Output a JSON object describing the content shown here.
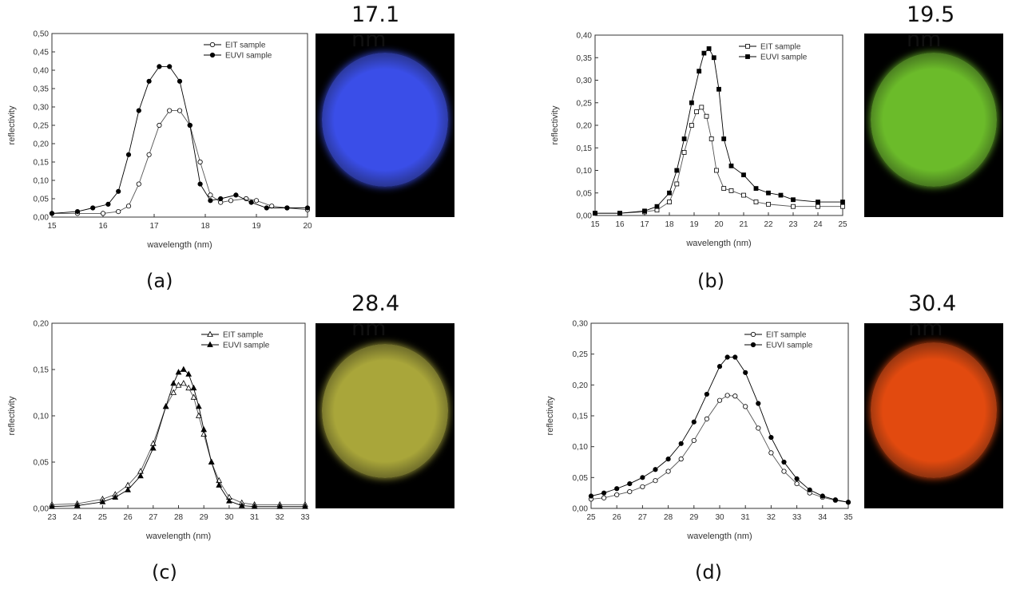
{
  "chart_data": [
    {
      "panel": "(a)",
      "title": "17.1 nm",
      "caption": "(a)",
      "type": "scatter",
      "marker_shape": "circle",
      "xlabel": "wavelength (nm)",
      "ylabel": "reflectivity",
      "xlim": [
        15,
        20
      ],
      "ylim": [
        0,
        0.5
      ],
      "xticks": [
        15,
        16,
        17,
        18,
        19,
        20
      ],
      "yticks": [
        0,
        0.05,
        0.1,
        0.15,
        0.2,
        0.25,
        0.3,
        0.35,
        0.4,
        0.45,
        0.5
      ],
      "xtick_labels": [
        "15",
        "16",
        "17",
        "18",
        "19",
        "20"
      ],
      "ytick_labels": [
        "0,00",
        "0,05",
        "0,10",
        "0,15",
        "0,20",
        "0,25",
        "0,30",
        "0,35",
        "0,40",
        "0,45",
        "0,50"
      ],
      "legend_position": "top-right",
      "image_color": "#3a4ee8",
      "series": [
        {
          "name": "EIT sample",
          "filled": false,
          "x": [
            15.0,
            15.5,
            16.0,
            16.3,
            16.5,
            16.7,
            16.9,
            17.1,
            17.3,
            17.5,
            17.7,
            17.9,
            18.1,
            18.3,
            18.5,
            18.8,
            19.0,
            19.3,
            19.6,
            20.0
          ],
          "y": [
            0.01,
            0.01,
            0.01,
            0.015,
            0.03,
            0.09,
            0.17,
            0.25,
            0.29,
            0.29,
            0.25,
            0.15,
            0.06,
            0.04,
            0.045,
            0.05,
            0.045,
            0.03,
            0.025,
            0.02
          ]
        },
        {
          "name": "EUVI sample",
          "filled": true,
          "x": [
            15.0,
            15.5,
            15.8,
            16.1,
            16.3,
            16.5,
            16.7,
            16.9,
            17.1,
            17.3,
            17.5,
            17.7,
            17.9,
            18.1,
            18.3,
            18.6,
            18.9,
            19.2,
            19.6,
            20.0
          ],
          "y": [
            0.01,
            0.015,
            0.025,
            0.035,
            0.07,
            0.17,
            0.29,
            0.37,
            0.41,
            0.41,
            0.37,
            0.25,
            0.09,
            0.045,
            0.05,
            0.06,
            0.04,
            0.025,
            0.025,
            0.025
          ]
        }
      ]
    },
    {
      "panel": "(b)",
      "title": "19.5 nm",
      "caption": "(b)",
      "type": "scatter",
      "marker_shape": "square",
      "xlabel": "wavelength (nm)",
      "ylabel": "reflectivity",
      "xlim": [
        15,
        25
      ],
      "ylim": [
        0,
        0.4
      ],
      "xticks": [
        15,
        16,
        17,
        18,
        19,
        20,
        21,
        22,
        23,
        24,
        25
      ],
      "yticks": [
        0,
        0.05,
        0.1,
        0.15,
        0.2,
        0.25,
        0.3,
        0.35,
        0.4
      ],
      "xtick_labels": [
        "15",
        "16",
        "17",
        "18",
        "19",
        "20",
        "21",
        "22",
        "23",
        "24",
        "25"
      ],
      "ytick_labels": [
        "0,00",
        "0,05",
        "0,10",
        "0,15",
        "0,20",
        "0,25",
        "0,30",
        "0,35",
        "0,40"
      ],
      "legend_position": "top-right",
      "image_color": "#6bbb2a",
      "series": [
        {
          "name": "EIT sample",
          "filled": false,
          "x": [
            15,
            16,
            17,
            17.5,
            18,
            18.3,
            18.6,
            18.9,
            19.1,
            19.3,
            19.5,
            19.7,
            19.9,
            20.2,
            20.5,
            21,
            21.5,
            22,
            23,
            24,
            25
          ],
          "y": [
            0.005,
            0.005,
            0.008,
            0.012,
            0.03,
            0.07,
            0.14,
            0.2,
            0.23,
            0.24,
            0.22,
            0.17,
            0.1,
            0.06,
            0.055,
            0.045,
            0.03,
            0.025,
            0.02,
            0.02,
            0.02
          ]
        },
        {
          "name": "EUVI sample",
          "filled": true,
          "x": [
            15,
            16,
            17,
            17.5,
            18,
            18.3,
            18.6,
            18.9,
            19.2,
            19.4,
            19.6,
            19.8,
            20.0,
            20.2,
            20.5,
            21,
            21.5,
            22,
            22.5,
            23,
            24,
            25
          ],
          "y": [
            0.005,
            0.005,
            0.01,
            0.02,
            0.05,
            0.1,
            0.17,
            0.25,
            0.32,
            0.36,
            0.37,
            0.35,
            0.28,
            0.17,
            0.11,
            0.09,
            0.06,
            0.05,
            0.045,
            0.035,
            0.03,
            0.03
          ]
        }
      ]
    },
    {
      "panel": "(c)",
      "title": "28.4 nm",
      "caption": "(c)",
      "type": "scatter",
      "marker_shape": "triangle",
      "xlabel": "wavelength (nm)",
      "ylabel": "reflectivity",
      "xlim": [
        23,
        33
      ],
      "ylim": [
        0,
        0.2
      ],
      "xticks": [
        23,
        24,
        25,
        26,
        27,
        28,
        29,
        30,
        31,
        32,
        33
      ],
      "yticks": [
        0,
        0.05,
        0.1,
        0.15,
        0.2
      ],
      "xtick_labels": [
        "23",
        "24",
        "25",
        "26",
        "27",
        "28",
        "29",
        "30",
        "31",
        "32",
        "33"
      ],
      "ytick_labels": [
        "0,00",
        "0,05",
        "0,10",
        "0,15",
        "0,20"
      ],
      "legend_position": "top-right",
      "image_color": "#a9a63a",
      "series": [
        {
          "name": "EIT sample",
          "filled": false,
          "x": [
            23,
            24,
            25,
            25.5,
            26,
            26.5,
            27,
            27.5,
            27.8,
            28.0,
            28.2,
            28.4,
            28.6,
            28.8,
            29.0,
            29.3,
            29.6,
            30.0,
            30.5,
            31,
            32,
            33
          ],
          "y": [
            0.004,
            0.005,
            0.01,
            0.015,
            0.025,
            0.04,
            0.07,
            0.11,
            0.125,
            0.133,
            0.135,
            0.13,
            0.12,
            0.1,
            0.08,
            0.05,
            0.03,
            0.012,
            0.006,
            0.004,
            0.004,
            0.004
          ]
        },
        {
          "name": "EUVI sample",
          "filled": true,
          "x": [
            23,
            24,
            25,
            25.5,
            26,
            26.5,
            27,
            27.5,
            27.8,
            28.0,
            28.2,
            28.4,
            28.6,
            28.8,
            29.0,
            29.3,
            29.6,
            30.0,
            30.5,
            31,
            32,
            33
          ],
          "y": [
            0.002,
            0.003,
            0.007,
            0.012,
            0.02,
            0.035,
            0.065,
            0.11,
            0.135,
            0.147,
            0.15,
            0.145,
            0.13,
            0.11,
            0.085,
            0.05,
            0.025,
            0.008,
            0.003,
            0.002,
            0.002,
            0.002
          ]
        }
      ]
    },
    {
      "panel": "(d)",
      "title": "30.4 nm",
      "caption": "(d)",
      "type": "scatter",
      "marker_shape": "circle",
      "xlabel": "wavelength (nm)",
      "ylabel": "reflectivity",
      "xlim": [
        25,
        35
      ],
      "ylim": [
        0,
        0.3
      ],
      "xticks": [
        25,
        26,
        27,
        28,
        29,
        30,
        31,
        32,
        33,
        34,
        35
      ],
      "yticks": [
        0,
        0.05,
        0.1,
        0.15,
        0.2,
        0.25,
        0.3
      ],
      "xtick_labels": [
        "25",
        "26",
        "27",
        "28",
        "29",
        "30",
        "31",
        "32",
        "33",
        "34",
        "35"
      ],
      "ytick_labels": [
        "0,00",
        "0,05",
        "0,10",
        "0,15",
        "0,20",
        "0,25",
        "0,30"
      ],
      "legend_position": "top-right",
      "image_color": "#e24a0f",
      "series": [
        {
          "name": "EIT sample",
          "filled": false,
          "x": [
            25,
            25.5,
            26,
            26.5,
            27,
            27.5,
            28,
            28.5,
            29,
            29.5,
            30,
            30.3,
            30.6,
            31,
            31.5,
            32,
            32.5,
            33,
            33.5,
            34,
            34.5,
            35
          ],
          "y": [
            0.015,
            0.017,
            0.022,
            0.027,
            0.035,
            0.045,
            0.06,
            0.08,
            0.11,
            0.145,
            0.175,
            0.183,
            0.182,
            0.165,
            0.13,
            0.09,
            0.06,
            0.04,
            0.025,
            0.018,
            0.013,
            0.01
          ]
        },
        {
          "name": "EUVI sample",
          "filled": true,
          "x": [
            25,
            25.5,
            26,
            26.5,
            27,
            27.5,
            28,
            28.5,
            29,
            29.5,
            30,
            30.3,
            30.6,
            31,
            31.5,
            32,
            32.5,
            33,
            33.5,
            34,
            34.5,
            35
          ],
          "y": [
            0.02,
            0.025,
            0.032,
            0.04,
            0.05,
            0.063,
            0.08,
            0.105,
            0.14,
            0.185,
            0.23,
            0.245,
            0.245,
            0.22,
            0.17,
            0.115,
            0.075,
            0.048,
            0.03,
            0.02,
            0.014,
            0.01
          ]
        }
      ]
    }
  ]
}
